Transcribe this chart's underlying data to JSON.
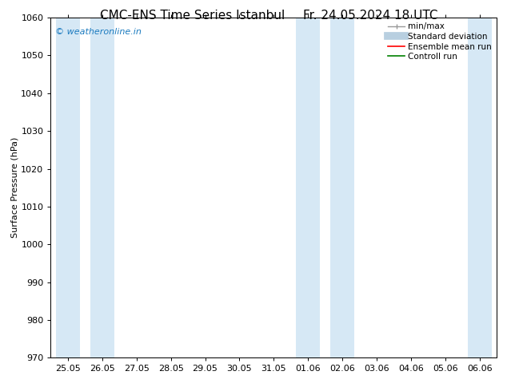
{
  "title_left": "CMC-ENS Time Series Istanbul",
  "title_right": "Fr. 24.05.2024 18 UTC",
  "ylabel": "Surface Pressure (hPa)",
  "ylim": [
    970,
    1060
  ],
  "yticks": [
    970,
    980,
    990,
    1000,
    1010,
    1020,
    1030,
    1040,
    1050,
    1060
  ],
  "xlabels": [
    "25.05",
    "26.05",
    "27.05",
    "28.05",
    "29.05",
    "30.05",
    "31.05",
    "01.06",
    "02.06",
    "03.06",
    "04.06",
    "05.06",
    "06.06"
  ],
  "shaded_indices": [
    0,
    1,
    7,
    8,
    12
  ],
  "shaded_color": "#d6e8f5",
  "bg_color": "#ffffff",
  "watermark": "© weatheronline.in",
  "watermark_color": "#1a7abf",
  "legend_labels": [
    "min/max",
    "Standard deviation",
    "Ensemble mean run",
    "Controll run"
  ],
  "legend_colors": [
    "#999999",
    "#b8cfe0",
    "red",
    "green"
  ],
  "title_fontsize": 11,
  "ylabel_fontsize": 8,
  "tick_fontsize": 8,
  "legend_fontsize": 7.5,
  "watermark_fontsize": 8
}
